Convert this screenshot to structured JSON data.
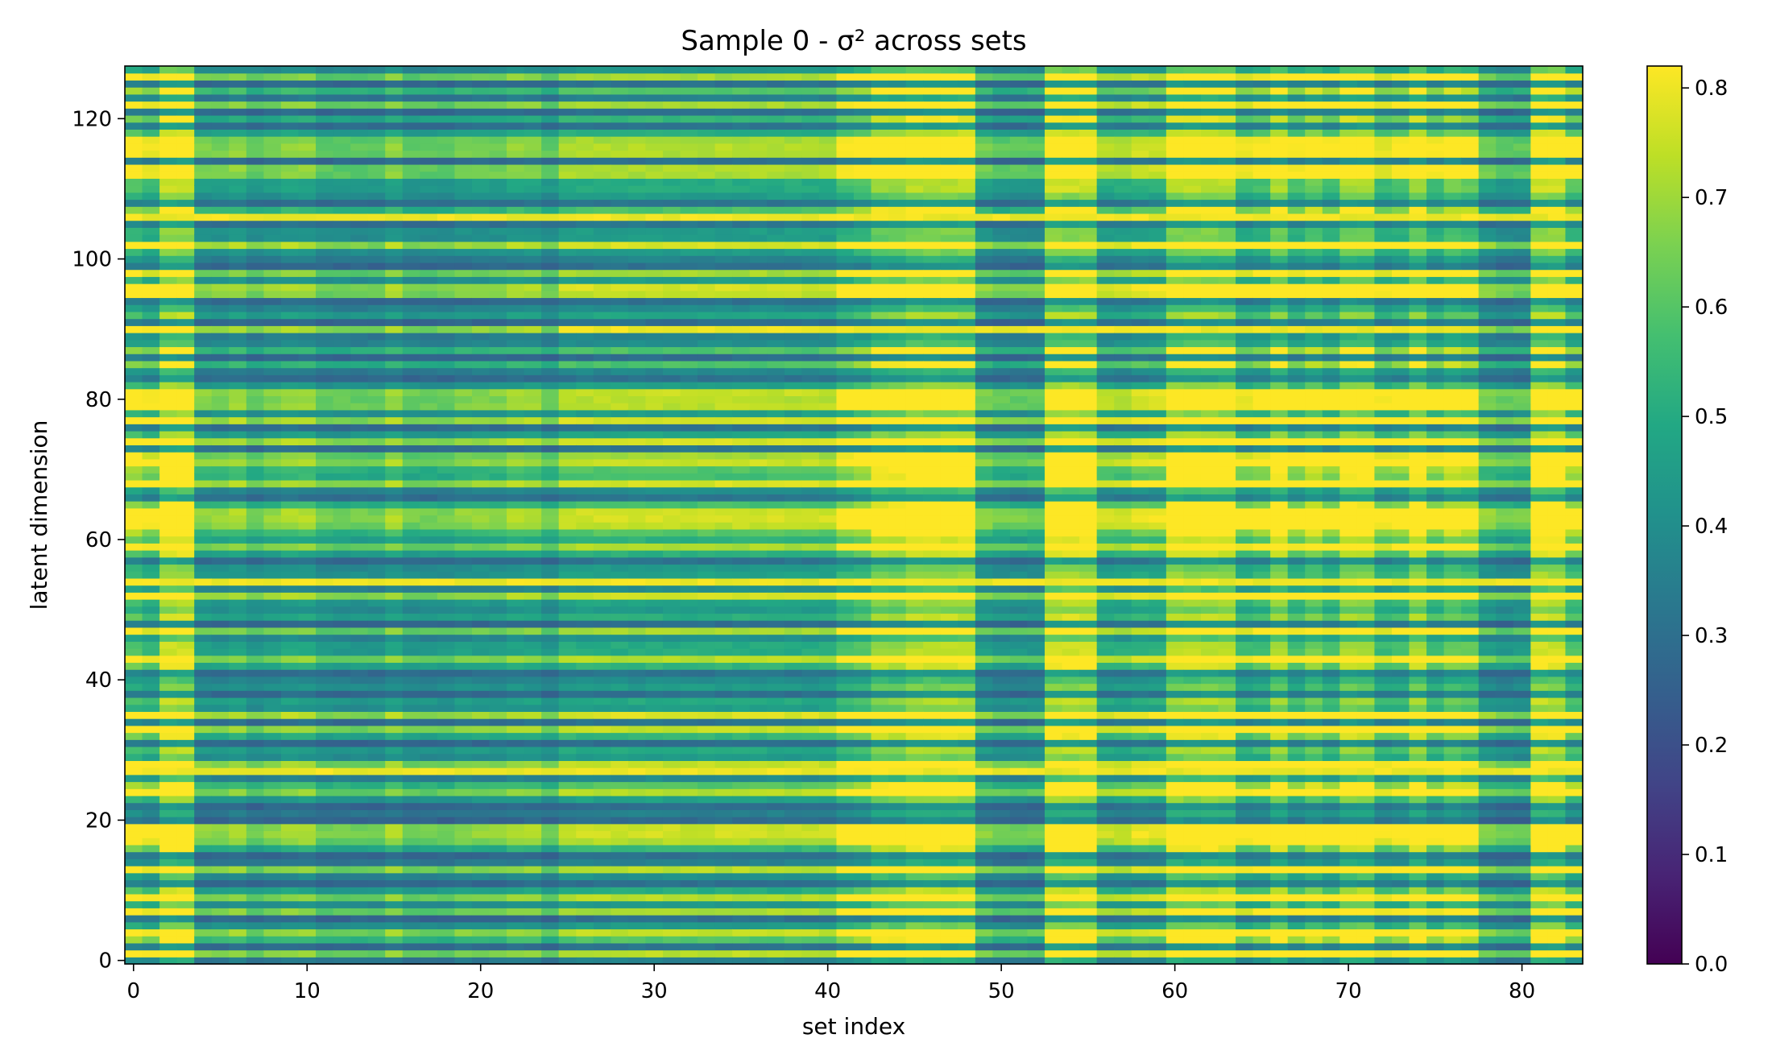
{
  "chart_data": {
    "type": "heatmap",
    "title": "Sample 0 - σ² across sets",
    "xlabel": "set index",
    "ylabel": "latent dimension",
    "x_range": [
      -0.5,
      83.5
    ],
    "y_range": [
      -0.5,
      127.5
    ],
    "n_x": 84,
    "n_y": 128,
    "x_ticks": [
      0,
      10,
      20,
      30,
      40,
      50,
      60,
      70,
      80
    ],
    "y_ticks": [
      0,
      20,
      40,
      60,
      80,
      100,
      120
    ],
    "colormap": "viridis",
    "value_range": [
      0.0,
      0.82
    ],
    "colorbar_ticks": [
      0.0,
      0.1,
      0.2,
      0.3,
      0.4,
      0.5,
      0.6,
      0.7,
      0.8
    ],
    "colorbar_tick_labels": [
      "0.0",
      "0.1",
      "0.2",
      "0.3",
      "0.4",
      "0.5",
      "0.6",
      "0.7",
      "0.8"
    ],
    "column_intensity": [
      0.65,
      0.55,
      1.0,
      1.0,
      0.35,
      0.35,
      0.4,
      0.3,
      0.35,
      0.4,
      0.4,
      0.3,
      0.3,
      0.3,
      0.3,
      0.4,
      0.3,
      0.3,
      0.3,
      0.35,
      0.35,
      0.35,
      0.4,
      0.4,
      0.3,
      0.45,
      0.45,
      0.45,
      0.45,
      0.45,
      0.45,
      0.45,
      0.45,
      0.45,
      0.45,
      0.45,
      0.45,
      0.45,
      0.45,
      0.45,
      0.45,
      0.6,
      0.65,
      0.85,
      0.85,
      0.95,
      0.95,
      0.95,
      0.95,
      0.35,
      0.3,
      0.3,
      0.3,
      1.0,
      1.0,
      1.0,
      0.45,
      0.45,
      0.5,
      0.5,
      0.95,
      0.95,
      0.95,
      0.95,
      0.55,
      0.6,
      0.9,
      0.6,
      0.75,
      0.6,
      0.9,
      0.9,
      0.55,
      0.6,
      0.9,
      0.6,
      0.75,
      0.7,
      0.35,
      0.3,
      0.3,
      1.0,
      1.0,
      0.65
    ],
    "bright_rows": [
      1,
      4,
      7,
      9,
      13,
      17,
      18,
      19,
      24,
      27,
      28,
      33,
      34,
      35,
      43,
      47,
      52,
      54,
      59,
      62,
      63,
      64,
      68,
      71,
      72,
      74,
      77,
      79,
      80,
      81,
      90,
      94,
      95,
      96,
      98,
      102,
      106,
      112,
      113,
      115,
      116,
      117,
      122,
      126
    ],
    "dark_rows": [
      2,
      6,
      11,
      15,
      20,
      22,
      31,
      34,
      38,
      41,
      48,
      57,
      66,
      73,
      76,
      83,
      86,
      91,
      94,
      99,
      105,
      108,
      114,
      119,
      121,
      125
    ],
    "bright_all_rows": [
      54,
      106,
      90,
      27
    ],
    "bright_all_rows_span": {
      "90": [
        24.5,
        77.5
      ]
    }
  }
}
